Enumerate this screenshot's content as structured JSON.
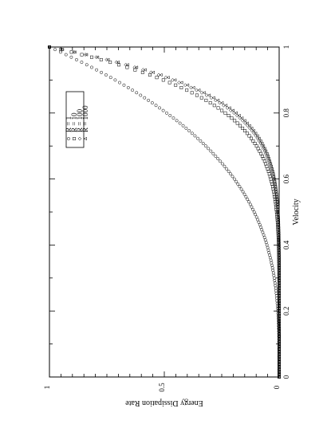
{
  "chart_data": {
    "type": "scatter",
    "orientation": "rotated-90-clockwise",
    "xlabel": "Velocity",
    "ylabel": "Energy Dissipation Rate",
    "xlim": [
      0,
      1
    ],
    "ylim": [
      0,
      1
    ],
    "x_ticks": [
      "0",
      "0.2",
      "0.4",
      "0.6",
      "0.8",
      "1"
    ],
    "y_ticks": [
      "0",
      "0.5",
      "1"
    ],
    "grid": false,
    "legend_placement": "top-right",
    "series": [
      {
        "name": "R = 1",
        "marker": "circle",
        "exponent": 3.2,
        "x": [
          0,
          0.3,
          0.4,
          0.5,
          0.6,
          0.7,
          0.8,
          0.9,
          1.0
        ],
        "y": [
          0,
          0.02,
          0.05,
          0.11,
          0.2,
          0.32,
          0.49,
          0.71,
          1.0
        ]
      },
      {
        "name": "R = 10",
        "marker": "square",
        "exponent": 6.5,
        "x": [
          0,
          0.5,
          0.6,
          0.7,
          0.8,
          0.9,
          1.0
        ],
        "y": [
          0,
          0.01,
          0.04,
          0.1,
          0.23,
          0.5,
          1.0
        ]
      },
      {
        "name": "R = 100",
        "marker": "diamond",
        "exponent": 7.3,
        "x": [
          0,
          0.5,
          0.6,
          0.7,
          0.8,
          0.9,
          1.0
        ],
        "y": [
          0,
          0.01,
          0.02,
          0.07,
          0.2,
          0.46,
          1.0
        ]
      },
      {
        "name": "R = 1000",
        "marker": "triangle",
        "exponent": 7.5,
        "x": [
          0,
          0.5,
          0.6,
          0.7,
          0.8,
          0.9,
          1.0
        ],
        "y": [
          0,
          0.01,
          0.02,
          0.07,
          0.19,
          0.45,
          1.0
        ]
      }
    ]
  }
}
